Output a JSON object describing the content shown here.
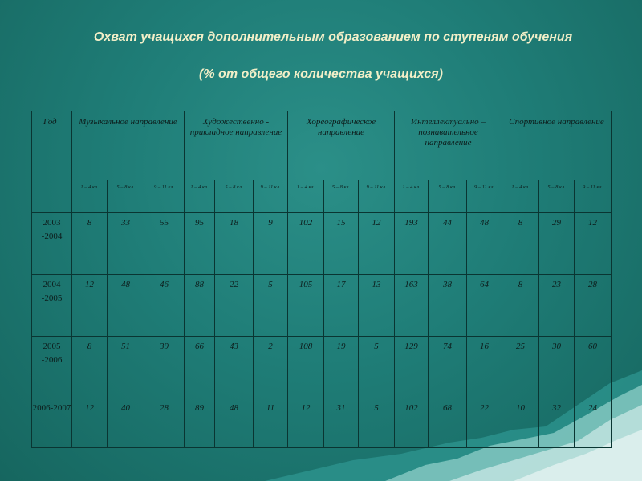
{
  "title": "Охват учащихся дополнительным образованием по ступеням обучения",
  "subtitle": "(%  от общего количества учащихся)",
  "table": {
    "year_header": "Год",
    "groups": [
      "Музыкальное направление",
      "Художественно - прикладное направление",
      "Хореографическое направление",
      "Интеллектуально – познавательное направление",
      "Спортивное направление"
    ],
    "subheaders": [
      [
        "1 – 4 кл.",
        "5 – 8 кл.",
        "9 – 11 кл."
      ],
      [
        "1 – 4 кл.",
        "5 – 8 кл.",
        "9 – 11 кл."
      ],
      [
        "1 – 4 кл.",
        "5 – 8 кл.",
        "9 – 11 кл."
      ],
      [
        "1 – 4 кл.",
        "5 – 8 кл.",
        "9 – 11 кл."
      ],
      [
        "1 – 4 кл.",
        "5 – 8 кл.",
        "9 – 11 кл."
      ]
    ],
    "rows": [
      {
        "year": "2003 -2004",
        "values": [
          "8",
          "33",
          "55",
          "95",
          "18",
          "9",
          "102",
          "15",
          "12",
          "193",
          "44",
          "48",
          "8",
          "29",
          "12"
        ]
      },
      {
        "year": "2004 -2005",
        "values": [
          "12",
          "48",
          "46",
          "88",
          "22",
          "5",
          "105",
          "17",
          "13",
          "163",
          "38",
          "64",
          "8",
          "23",
          "28"
        ]
      },
      {
        "year": "2005 -2006",
        "values": [
          "8",
          "51",
          "39",
          "66",
          "43",
          "2",
          "108",
          "19",
          "5",
          "129",
          "74",
          "16",
          "25",
          "30",
          "60"
        ]
      },
      {
        "year": "2006-2007",
        "values": [
          "12",
          "40",
          "28",
          "89",
          "48",
          "11",
          "12",
          "31",
          "5",
          "102",
          "68",
          "22",
          "10",
          "32",
          "24"
        ]
      }
    ]
  },
  "colors": {
    "background": "#1f7d77",
    "title_text": "#f2efc8",
    "grid_lines": "#0a3532",
    "mountains": "#bfe3df"
  }
}
